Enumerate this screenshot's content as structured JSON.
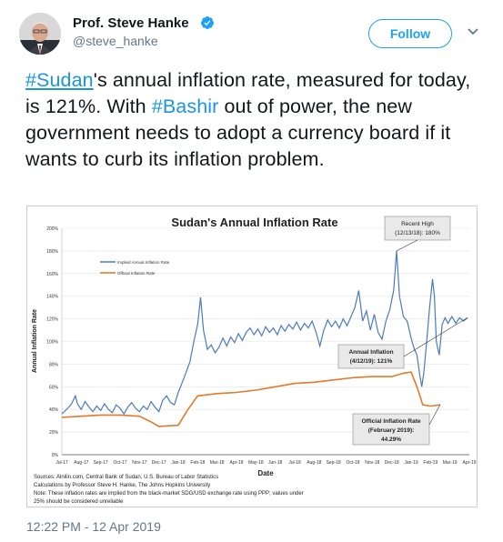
{
  "author": {
    "name": "Prof. Steve Hanke",
    "handle": "@steve_hanke",
    "verified": true,
    "avatar_icon": "avatar-portrait"
  },
  "follow_button": {
    "label": "Follow"
  },
  "menu_icon": "chevron-down-icon",
  "tweet": {
    "hashtag1": "#Sudan",
    "text1": "'s annual inflation rate, measured for today, is 121%. With ",
    "hashtag2": "#Bashir",
    "text2": " out of power, the new government needs to adopt a currency board if it wants to curb its inflation problem."
  },
  "timestamp": "12:22 PM - 12 Apr 2019",
  "colors": {
    "accent": "#1da1f2",
    "implied": "#4a7bbf",
    "official": "#e27a2b"
  },
  "chart_data": {
    "type": "line",
    "title": "Sudan's Annual Inflation Rate",
    "xlabel": "Date",
    "ylabel": "Annual Inflation Rate",
    "ylim": [
      0,
      200
    ],
    "yticks": [
      "0%",
      "20%",
      "40%",
      "60%",
      "80%",
      "100%",
      "120%",
      "140%",
      "160%",
      "180%",
      "200%"
    ],
    "x_ticks": [
      "Jul-17",
      "Aug-17",
      "Sep-17",
      "Oct-17",
      "Nov-17",
      "Dec-17",
      "Jan-18",
      "Feb-18",
      "Mar-18",
      "Apr-18",
      "May-18",
      "Jun-18",
      "Jul-18",
      "Aug-18",
      "Sep-18",
      "Oct-18",
      "Nov-18",
      "Dec-18",
      "Jan-19",
      "Feb-19",
      "Mar-19",
      "Apr-19"
    ],
    "legend": [
      "Implied Annual Inflation Rate",
      "Official Inflation Rate"
    ],
    "legend_position": "top-left",
    "series": [
      {
        "name": "Implied Annual Inflation Rate",
        "points": [
          [
            0,
            36
          ],
          [
            0.3,
            41
          ],
          [
            0.5,
            45
          ],
          [
            0.7,
            52
          ],
          [
            0.8,
            45
          ],
          [
            1.0,
            40
          ],
          [
            1.2,
            47
          ],
          [
            1.4,
            42
          ],
          [
            1.6,
            38
          ],
          [
            1.8,
            43
          ],
          [
            2.0,
            39
          ],
          [
            2.2,
            45
          ],
          [
            2.4,
            40
          ],
          [
            2.6,
            37
          ],
          [
            2.8,
            44
          ],
          [
            3.0,
            41
          ],
          [
            3.2,
            36
          ],
          [
            3.4,
            42
          ],
          [
            3.6,
            46
          ],
          [
            3.8,
            41
          ],
          [
            4.0,
            38
          ],
          [
            4.2,
            43
          ],
          [
            4.4,
            40
          ],
          [
            4.6,
            47
          ],
          [
            4.8,
            42
          ],
          [
            5.0,
            38
          ],
          [
            5.2,
            48
          ],
          [
            5.4,
            52
          ],
          [
            5.6,
            46
          ],
          [
            5.8,
            44
          ],
          [
            6.0,
            55
          ],
          [
            6.3,
            68
          ],
          [
            6.6,
            82
          ],
          [
            6.8,
            100
          ],
          [
            7.0,
            115
          ],
          [
            7.15,
            139
          ],
          [
            7.3,
            110
          ],
          [
            7.5,
            93
          ],
          [
            7.7,
            97
          ],
          [
            7.9,
            90
          ],
          [
            8.1,
            95
          ],
          [
            8.3,
            103
          ],
          [
            8.5,
            96
          ],
          [
            8.7,
            104
          ],
          [
            8.9,
            99
          ],
          [
            9.1,
            107
          ],
          [
            9.3,
            101
          ],
          [
            9.5,
            108
          ],
          [
            9.7,
            112
          ],
          [
            9.9,
            106
          ],
          [
            10.1,
            111
          ],
          [
            10.3,
            105
          ],
          [
            10.5,
            113
          ],
          [
            10.7,
            108
          ],
          [
            10.9,
            112
          ],
          [
            11.1,
            106
          ],
          [
            11.3,
            114
          ],
          [
            11.5,
            109
          ],
          [
            11.7,
            115
          ],
          [
            11.9,
            111
          ],
          [
            12.1,
            117
          ],
          [
            12.3,
            110
          ],
          [
            12.5,
            116
          ],
          [
            12.7,
            112
          ],
          [
            12.9,
            118
          ],
          [
            13.1,
            108
          ],
          [
            13.3,
            96
          ],
          [
            13.5,
            110
          ],
          [
            13.7,
            119
          ],
          [
            13.9,
            113
          ],
          [
            14.1,
            118
          ],
          [
            14.3,
            112
          ],
          [
            14.5,
            120
          ],
          [
            14.7,
            114
          ],
          [
            14.9,
            122
          ],
          [
            15.1,
            130
          ],
          [
            15.3,
            145
          ],
          [
            15.5,
            118
          ],
          [
            15.7,
            127
          ],
          [
            15.9,
            110
          ],
          [
            16.1,
            124
          ],
          [
            16.3,
            108
          ],
          [
            16.5,
            102
          ],
          [
            16.7,
            118
          ],
          [
            16.9,
            128
          ],
          [
            17.1,
            145
          ],
          [
            17.25,
            180
          ],
          [
            17.4,
            140
          ],
          [
            17.6,
            122
          ],
          [
            17.8,
            118
          ],
          [
            18.0,
            103
          ],
          [
            18.15,
            94
          ],
          [
            18.3,
            88
          ],
          [
            18.45,
            70
          ],
          [
            18.55,
            60
          ],
          [
            18.65,
            72
          ],
          [
            18.8,
            100
          ],
          [
            18.95,
            130
          ],
          [
            19.1,
            155
          ],
          [
            19.2,
            140
          ],
          [
            19.3,
            100
          ],
          [
            19.45,
            88
          ],
          [
            19.6,
            115
          ],
          [
            19.75,
            121
          ],
          [
            19.9,
            116
          ],
          [
            20.1,
            122
          ],
          [
            20.3,
            116
          ],
          [
            20.5,
            121
          ],
          [
            20.7,
            118
          ],
          [
            20.9,
            121
          ]
        ]
      },
      {
        "name": "Official Inflation Rate",
        "points": [
          [
            0,
            33
          ],
          [
            1,
            34
          ],
          [
            2,
            35
          ],
          [
            3,
            35
          ],
          [
            4,
            34
          ],
          [
            4.6,
            29
          ],
          [
            5,
            25
          ],
          [
            6,
            26
          ],
          [
            6.5,
            40
          ],
          [
            7,
            52
          ],
          [
            8,
            54
          ],
          [
            9,
            55
          ],
          [
            10,
            57
          ],
          [
            11,
            60
          ],
          [
            12,
            63
          ],
          [
            13,
            64
          ],
          [
            14,
            66
          ],
          [
            15,
            68
          ],
          [
            16,
            69
          ],
          [
            17,
            69
          ],
          [
            17.6,
            72
          ],
          [
            18.0,
            73
          ],
          [
            18.3,
            60
          ],
          [
            18.6,
            44
          ],
          [
            19,
            43
          ],
          [
            19.5,
            44
          ]
        ]
      }
    ],
    "annotations": [
      {
        "text": "Recent High",
        "text2": "(12/13/18): 180%",
        "x": 17.25,
        "y": 180
      },
      {
        "text": "Annual Inflation",
        "text2": "(4/12/19): 121%",
        "x": 20.9,
        "y": 121
      },
      {
        "text": "Official Inflation Rate",
        "text2": "(February 2019):",
        "text3": "44.29%",
        "x": 19.5,
        "y": 44.29
      }
    ],
    "notes": [
      "Sources: Alnilin.com, Central Bank of Sudan, U.S. Bureau of Labor Statistics",
      "Calculations by Professor Steve H. Hanke, The Johns Hopkins University",
      "Note: These inflation rates are implied from the black-market SDG/USD exchange rate using PPP; values under",
      "25% should be considered unreliable"
    ]
  }
}
